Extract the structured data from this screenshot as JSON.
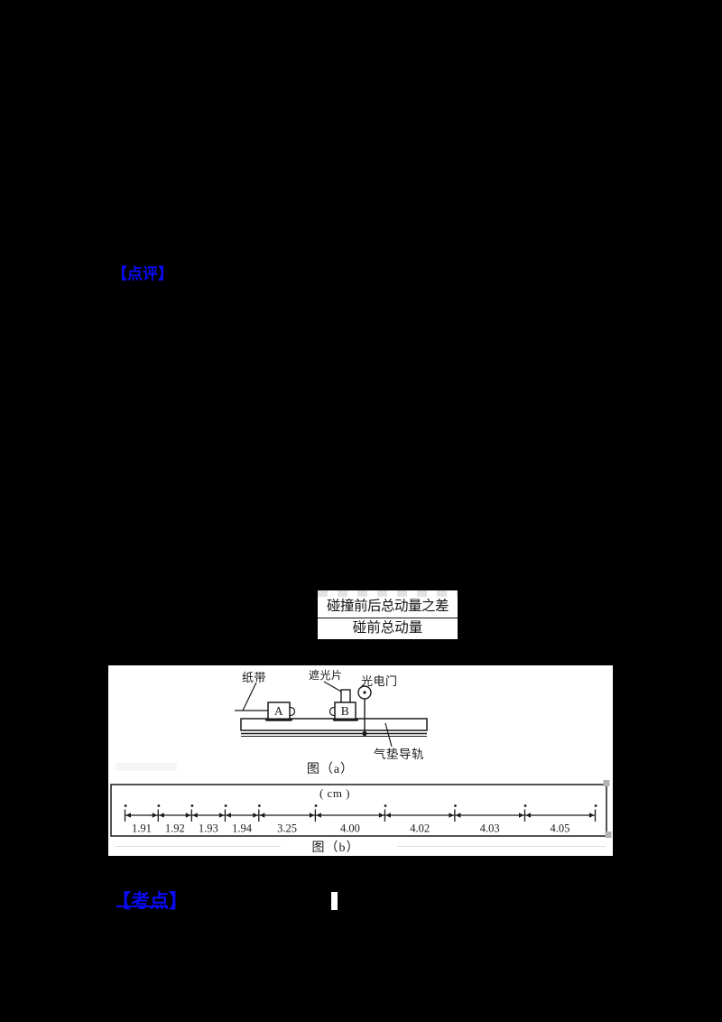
{
  "labels": {
    "review": "【点评】",
    "exam_point": "【考点】"
  },
  "fraction": {
    "numerator": "碰撞前后总动量之差",
    "denominator": "碰前总动量"
  },
  "figure_a": {
    "caption": "图（a）",
    "paper_tape_label": "纸带",
    "shutter_label": "遮光片",
    "photogate_label": "光电门",
    "air_track_label": "气垫导轨",
    "cart_a": "A",
    "cart_b": "B"
  },
  "figure_b": {
    "caption": "图（b）",
    "unit_label": "( cm )",
    "measurements_cm": [
      1.91,
      1.92,
      1.93,
      1.94,
      3.25,
      4.0,
      4.02,
      4.03,
      4.05
    ]
  },
  "colors": {
    "accent_blue": "#0a0af0",
    "ink": "#1a1a1a",
    "paper": "#ffffff",
    "page_background": "#000000"
  }
}
